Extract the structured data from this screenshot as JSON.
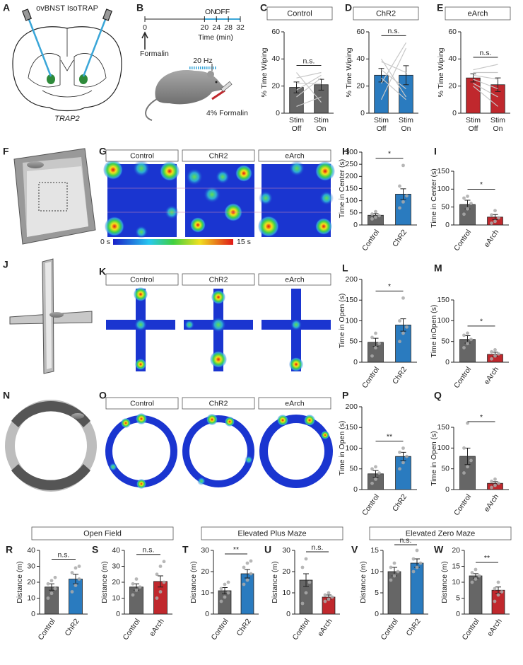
{
  "panels": {
    "group_colors": [
      "#777777",
      "#2a7bbf",
      "#c0282d"
    ],
    "A": {
      "letter": "A",
      "title": "ovBNST IsoTRAP",
      "caption": "TRAP2"
    },
    "B": {
      "letter": "B",
      "on": "ON",
      "off": "OFF",
      "xlim": [
        0,
        32
      ],
      "ticks": [
        0,
        20,
        24,
        28,
        32
      ],
      "xlabel": "Time (min)",
      "event": "Formalin",
      "stim": "20 Hz",
      "injection": "4% Formalin"
    },
    "F": {
      "letter": "F"
    },
    "G": {
      "letter": "G",
      "groups": [
        "Control",
        "ChR2",
        "eArch"
      ],
      "scale_min": "0 s",
      "scale_max": "15 s"
    },
    "J": {
      "letter": "J"
    },
    "K": {
      "letter": "K",
      "groups": [
        "Control",
        "ChR2",
        "eArch"
      ]
    },
    "N": {
      "letter": "N"
    },
    "O": {
      "letter": "O",
      "groups": [
        "Control",
        "ChR2",
        "eArch"
      ]
    },
    "sections": [
      "Open Field",
      "Elevated Plus Maze",
      "Elevated Zero Maze"
    ]
  },
  "chart_data": [
    {
      "type": "bar",
      "panel": "C",
      "title": "Control",
      "title_color": "#777777",
      "ylabel": "% Time Wiping",
      "categories": [
        "Stim Off",
        "Stim On"
      ],
      "values": [
        19,
        21
      ],
      "errors": [
        4,
        4
      ],
      "points": [
        [
          5,
          12,
          17,
          22,
          26,
          30
        ],
        [
          12,
          26,
          28,
          22,
          30,
          8
        ]
      ],
      "paired": true,
      "colors": [
        "#666666",
        "#666666"
      ],
      "ylim": [
        0,
        60
      ],
      "yticks": [
        0,
        20,
        40,
        60
      ],
      "significance": "n.s."
    },
    {
      "type": "bar",
      "panel": "D",
      "title": "ChR2",
      "title_color": "#2a7bbf",
      "ylabel": "% Time Wiping",
      "categories": [
        "Stim Off",
        "Stim On"
      ],
      "values": [
        28,
        28
      ],
      "errors": [
        5,
        7
      ],
      "points": [
        [
          10,
          22,
          26,
          32,
          38,
          40
        ],
        [
          48,
          52,
          10,
          18,
          30,
          12
        ]
      ],
      "paired": true,
      "colors": [
        "#2a7bbf",
        "#2a7bbf"
      ],
      "ylim": [
        0,
        60
      ],
      "yticks": [
        0,
        20,
        40,
        60
      ],
      "significance": "n.s."
    },
    {
      "type": "bar",
      "panel": "E",
      "title": "eArch",
      "title_color": "#c0282d",
      "ylabel": "% Time Wiping",
      "categories": [
        "Stim Off",
        "Stim On"
      ],
      "values": [
        26,
        21
      ],
      "errors": [
        3,
        5
      ],
      "points": [
        [
          20,
          22,
          25,
          28,
          30,
          32
        ],
        [
          5,
          12,
          18,
          25,
          30,
          36
        ]
      ],
      "paired": true,
      "colors": [
        "#c0282d",
        "#c0282d"
      ],
      "ylim": [
        0,
        60
      ],
      "yticks": [
        0,
        20,
        40,
        60
      ],
      "significance": "n.s."
    },
    {
      "type": "bar",
      "panel": "H",
      "ylabel": "Time in Center (s)",
      "categories": [
        "Control",
        "ChR2"
      ],
      "values": [
        40,
        127
      ],
      "errors": [
        7,
        22
      ],
      "points": [
        [
          25,
          32,
          38,
          45,
          55
        ],
        [
          70,
          95,
          120,
          160,
          245
        ]
      ],
      "paired": false,
      "colors": [
        "#666666",
        "#2a7bbf"
      ],
      "ylim": [
        0,
        300
      ],
      "yticks": [
        0,
        50,
        100,
        150,
        200,
        250,
        300
      ],
      "significance": "*"
    },
    {
      "type": "bar",
      "panel": "I",
      "ylabel": "Time in Center (s)",
      "categories": [
        "Control",
        "eArch"
      ],
      "values": [
        57,
        22
      ],
      "errors": [
        12,
        7
      ],
      "points": [
        [
          30,
          45,
          60,
          75,
          80
        ],
        [
          5,
          10,
          20,
          28,
          40
        ]
      ],
      "paired": false,
      "colors": [
        "#666666",
        "#c0282d"
      ],
      "ylim": [
        0,
        150
      ],
      "yticks": [
        0,
        50,
        100,
        150
      ],
      "significance": "*"
    },
    {
      "type": "bar",
      "panel": "L",
      "ylabel": "Time in Open (s)",
      "categories": [
        "Control",
        "ChR2"
      ],
      "values": [
        48,
        90
      ],
      "errors": [
        10,
        15
      ],
      "points": [
        [
          15,
          35,
          45,
          60,
          70
        ],
        [
          50,
          70,
          85,
          100,
          155
        ]
      ],
      "paired": false,
      "colors": [
        "#666666",
        "#2a7bbf"
      ],
      "ylim": [
        0,
        200
      ],
      "yticks": [
        0,
        50,
        100,
        150,
        200
      ],
      "significance": "*"
    },
    {
      "type": "bar",
      "panel": "M",
      "ylabel": "Time inOpen (s)",
      "categories": [
        "Control",
        "eArch"
      ],
      "values": [
        55,
        19
      ],
      "errors": [
        9,
        5
      ],
      "points": [
        [
          35,
          45,
          55,
          65,
          70
        ],
        [
          8,
          15,
          20,
          25,
          30
        ]
      ],
      "paired": false,
      "colors": [
        "#666666",
        "#c0282d"
      ],
      "ylim": [
        0,
        150
      ],
      "yticks": [
        0,
        50,
        100,
        150
      ],
      "significance": "*"
    },
    {
      "type": "bar",
      "panel": "P",
      "ylabel": "Time in Open (s)",
      "categories": [
        "Control",
        "ChR2"
      ],
      "values": [
        38,
        80
      ],
      "errors": [
        8,
        10
      ],
      "points": [
        [
          15,
          25,
          40,
          50,
          55
        ],
        [
          50,
          65,
          80,
          90,
          100
        ]
      ],
      "paired": false,
      "colors": [
        "#666666",
        "#2a7bbf"
      ],
      "ylim": [
        0,
        200
      ],
      "yticks": [
        0,
        50,
        100,
        150,
        200
      ],
      "significance": "**"
    },
    {
      "type": "bar",
      "panel": "Q",
      "ylabel": "Time in Open (s)",
      "categories": [
        "Control",
        "eArch"
      ],
      "values": [
        80,
        15
      ],
      "errors": [
        20,
        4
      ],
      "points": [
        [
          40,
          55,
          70,
          100,
          160
        ],
        [
          5,
          10,
          15,
          20,
          25
        ]
      ],
      "paired": false,
      "colors": [
        "#666666",
        "#c0282d"
      ],
      "ylim": [
        0,
        150
      ],
      "yticks": [
        0,
        50,
        100,
        150
      ],
      "significance": "*"
    },
    {
      "type": "bar",
      "panel": "R",
      "ylabel": "Distance (m)",
      "categories": [
        "Control",
        "ChR2"
      ],
      "values": [
        17,
        22
      ],
      "errors": [
        2,
        3
      ],
      "points": [
        [
          10,
          13,
          16,
          19,
          21,
          23
        ],
        [
          14,
          18,
          22,
          26,
          29,
          30
        ]
      ],
      "paired": false,
      "colors": [
        "#666666",
        "#2a7bbf"
      ],
      "ylim": [
        0,
        40
      ],
      "yticks": [
        0,
        10,
        20,
        30,
        40
      ],
      "significance": "n.s."
    },
    {
      "type": "bar",
      "panel": "S",
      "ylabel": "Distance (m)",
      "categories": [
        "Control",
        "eArch"
      ],
      "values": [
        17,
        20.5
      ],
      "errors": [
        2,
        3.5
      ],
      "points": [
        [
          12,
          15,
          17,
          19,
          22
        ],
        [
          10,
          14,
          20,
          25,
          30,
          33
        ]
      ],
      "paired": false,
      "colors": [
        "#666666",
        "#c0282d"
      ],
      "ylim": [
        0,
        40
      ],
      "yticks": [
        0,
        10,
        20,
        30,
        40
      ],
      "significance": "n.s."
    },
    {
      "type": "bar",
      "panel": "T",
      "ylabel": "Distance (m)",
      "categories": [
        "Control",
        "ChR2"
      ],
      "values": [
        11,
        19
      ],
      "errors": [
        1.5,
        2
      ],
      "points": [
        [
          6,
          8,
          10,
          12,
          14,
          15
        ],
        [
          14,
          16,
          19,
          22,
          24,
          25
        ]
      ],
      "paired": false,
      "colors": [
        "#666666",
        "#2a7bbf"
      ],
      "ylim": [
        0,
        30
      ],
      "yticks": [
        0,
        10,
        20,
        30
      ],
      "significance": "**"
    },
    {
      "type": "bar",
      "panel": "U",
      "ylabel": "Distance (m)",
      "categories": [
        "Control",
        "eArch"
      ],
      "values": [
        16,
        8
      ],
      "errors": [
        3,
        1
      ],
      "points": [
        [
          5,
          10,
          15,
          22,
          26
        ],
        [
          6,
          7,
          8,
          9,
          10
        ]
      ],
      "paired": false,
      "colors": [
        "#666666",
        "#c0282d"
      ],
      "ylim": [
        0,
        30
      ],
      "yticks": [
        0,
        10,
        20,
        30
      ],
      "significance": "n.s."
    },
    {
      "type": "bar",
      "panel": "V",
      "ylabel": "Distance (m)",
      "categories": [
        "Control",
        "ChR2"
      ],
      "values": [
        10,
        12
      ],
      "errors": [
        1,
        1
      ],
      "points": [
        [
          8,
          9,
          10,
          11,
          12
        ],
        [
          10,
          11,
          12,
          13,
          15
        ]
      ],
      "paired": false,
      "colors": [
        "#666666",
        "#2a7bbf"
      ],
      "ylim": [
        0,
        15
      ],
      "yticks": [
        0,
        5,
        10,
        15
      ],
      "significance": "n.s."
    },
    {
      "type": "bar",
      "panel": "W",
      "ylabel": "Distance (m)",
      "categories": [
        "Control",
        "eArch"
      ],
      "values": [
        12,
        7.5
      ],
      "errors": [
        0.7,
        1
      ],
      "points": [
        [
          10,
          11,
          12,
          13,
          14
        ],
        [
          4,
          6,
          7,
          8,
          10
        ]
      ],
      "paired": false,
      "colors": [
        "#666666",
        "#c0282d"
      ],
      "ylim": [
        0,
        20
      ],
      "yticks": [
        0,
        5,
        10,
        15,
        20
      ],
      "significance": "**"
    }
  ]
}
